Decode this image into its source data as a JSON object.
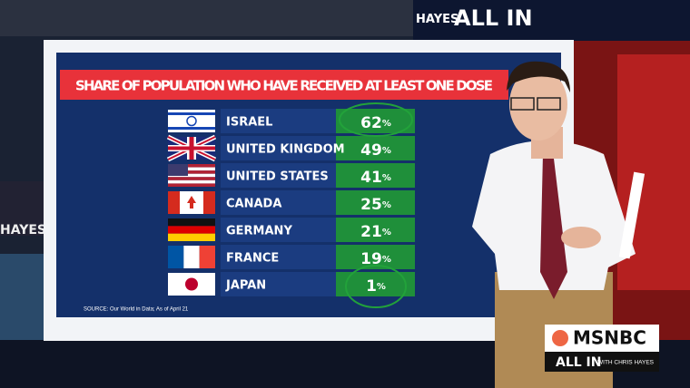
{
  "board": {
    "title": "SHARE OF POPULATION WHO HAVE RECEIVED AT LEAST ONE DOSE",
    "rows": [
      {
        "country": "ISRAEL",
        "value": "62",
        "unit": "%"
      },
      {
        "country": "UNITED KINGDOM",
        "value": "49",
        "unit": "%"
      },
      {
        "country": "UNITED STATES",
        "value": "41",
        "unit": "%"
      },
      {
        "country": "CANADA",
        "value": "25",
        "unit": "%"
      },
      {
        "country": "GERMANY",
        "value": "21",
        "unit": "%"
      },
      {
        "country": "FRANCE",
        "value": "19",
        "unit": "%"
      },
      {
        "country": "JAPAN",
        "value": "1",
        "unit": "%"
      }
    ],
    "source": "SOURCE: Our World in Data; As of April 21"
  },
  "background": {
    "screen_top": "ALL IN",
    "screen_hayes_top": "HAYES",
    "screen_left": "HAYES"
  },
  "logo": {
    "network": "MSNBC",
    "show": "ALL IN",
    "host": "WITH CHRIS HAYES"
  }
}
